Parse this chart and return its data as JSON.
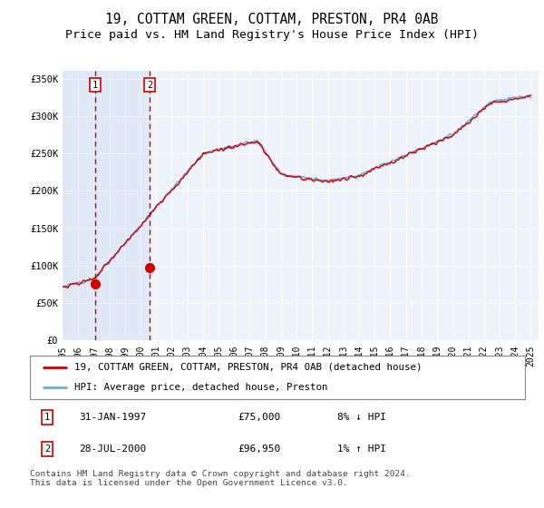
{
  "title": "19, COTTAM GREEN, COTTAM, PRESTON, PR4 0AB",
  "subtitle": "Price paid vs. HM Land Registry's House Price Index (HPI)",
  "ylim": [
    0,
    360000
  ],
  "yticks": [
    0,
    50000,
    100000,
    150000,
    200000,
    250000,
    300000,
    350000
  ],
  "ytick_labels": [
    "£0",
    "£50K",
    "£100K",
    "£150K",
    "£200K",
    "£250K",
    "£300K",
    "£350K"
  ],
  "xlim_start": 1995.0,
  "xlim_end": 2025.5,
  "sale1_year": 1997.08,
  "sale1_price": 75000,
  "sale2_year": 2000.57,
  "sale2_price": 96950,
  "red_line_color": "#cc0000",
  "blue_line_color": "#7aaad0",
  "vline_color": "#cc0000",
  "sale_marker_color": "#cc0000",
  "background_color": "#ffffff",
  "plot_bg_color": "#eef2fa",
  "grid_color": "#ffffff",
  "legend_label_red": "19, COTTAM GREEN, COTTAM, PRESTON, PR4 0AB (detached house)",
  "legend_label_blue": "HPI: Average price, detached house, Preston",
  "table_row1": [
    "1",
    "31-JAN-1997",
    "£75,000",
    "8% ↓ HPI"
  ],
  "table_row2": [
    "2",
    "28-JUL-2000",
    "£96,950",
    "1% ↑ HPI"
  ],
  "footer": "Contains HM Land Registry data © Crown copyright and database right 2024.\nThis data is licensed under the Open Government Licence v3.0.",
  "title_fontsize": 10.5,
  "subtitle_fontsize": 9.5,
  "tick_fontsize": 7.5
}
